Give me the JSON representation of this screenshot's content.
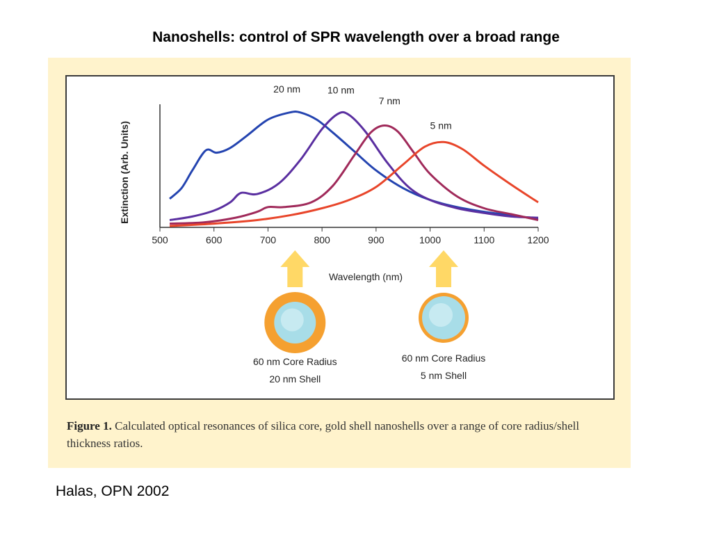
{
  "slide": {
    "title": "Nanoshells: control of SPR wavelength over a broad range",
    "citation": "Halas, OPN 2002"
  },
  "figure": {
    "caption_label": "Figure 1.",
    "caption_text": " Calculated optical resonances of silica core, gold shell nanoshells over a range of core radius/shell thickness ratios.",
    "panel_color": "#fff3cc",
    "arrow_color": "#ffd866",
    "shell_color": "#f5a030",
    "core_color": "#a8dde8",
    "particles": [
      {
        "line1": "60 nm Core Radius",
        "line2": "20 nm Shell",
        "shell": "thick",
        "points_to_nm": 750
      },
      {
        "line1": "60 nm Core Radius",
        "line2": "5 nm Shell",
        "shell": "thin",
        "points_to_nm": 1025
      }
    ]
  },
  "chart_data": {
    "type": "line",
    "xlabel": "Wavelength (nm)",
    "ylabel": "Extinction (Arb. Units)",
    "xlim": [
      500,
      1200
    ],
    "ylim": [
      0,
      1
    ],
    "x_ticks": [
      "500",
      "600",
      "700",
      "800",
      "900",
      "1000",
      "1100",
      "1200"
    ],
    "grid": false,
    "series": [
      {
        "name": "20 nm",
        "color": "#2444b0",
        "x": [
          518,
          540,
          560,
          585,
          605,
          630,
          660,
          700,
          740,
          760,
          790,
          820,
          860,
          900,
          950,
          1000,
          1050,
          1100,
          1150,
          1200
        ],
        "y": [
          0.23,
          0.32,
          0.47,
          0.64,
          0.62,
          0.66,
          0.76,
          0.9,
          0.96,
          0.96,
          0.9,
          0.79,
          0.63,
          0.47,
          0.32,
          0.22,
          0.16,
          0.12,
          0.09,
          0.06
        ]
      },
      {
        "name": "10 nm",
        "color": "#5a2fa0",
        "x": [
          518,
          560,
          600,
          630,
          650,
          680,
          720,
          760,
          800,
          830,
          850,
          880,
          920,
          960,
          1000,
          1050,
          1100,
          1150,
          1200
        ],
        "y": [
          0.05,
          0.08,
          0.13,
          0.2,
          0.28,
          0.27,
          0.36,
          0.56,
          0.82,
          0.95,
          0.94,
          0.8,
          0.54,
          0.33,
          0.22,
          0.15,
          0.11,
          0.08,
          0.07
        ]
      },
      {
        "name": "7 nm",
        "color": "#a02a5a",
        "x": [
          518,
          580,
          640,
          680,
          700,
          730,
          780,
          820,
          860,
          890,
          915,
          940,
          970,
          1000,
          1050,
          1100,
          1150,
          1200
        ],
        "y": [
          0.02,
          0.03,
          0.07,
          0.12,
          0.16,
          0.16,
          0.2,
          0.34,
          0.6,
          0.79,
          0.85,
          0.8,
          0.62,
          0.44,
          0.25,
          0.15,
          0.1,
          0.05
        ]
      },
      {
        "name": "5 nm",
        "color": "#e8452a",
        "x": [
          518,
          600,
          680,
          740,
          800,
          850,
          900,
          950,
          990,
          1025,
          1060,
          1100,
          1150,
          1200
        ],
        "y": [
          0.0,
          0.02,
          0.05,
          0.09,
          0.15,
          0.22,
          0.33,
          0.52,
          0.67,
          0.71,
          0.65,
          0.51,
          0.35,
          0.2
        ]
      }
    ],
    "annotations": [
      {
        "text": "20 nm",
        "x": 735,
        "y": 1.13
      },
      {
        "text": "10 nm",
        "x": 835,
        "y": 1.12
      },
      {
        "text": "7 nm",
        "x": 925,
        "y": 1.03
      },
      {
        "text": "5 nm",
        "x": 1020,
        "y": 0.82
      }
    ]
  }
}
